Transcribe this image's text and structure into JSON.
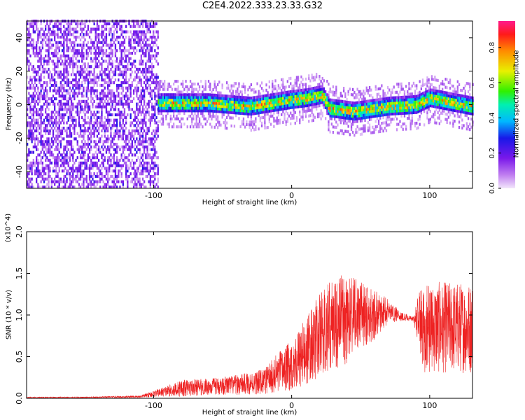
{
  "title": "C2E4.2022.333.23.33.G32",
  "chart_data": [
    {
      "type": "heatmap",
      "xlabel": "Height of straight line (km)",
      "ylabel": "Frequency (Hz)",
      "xlim": [
        -192,
        131
      ],
      "ylim": [
        -50,
        50
      ],
      "xticks": [
        -100,
        0,
        100
      ],
      "yticks": [
        -40,
        -20,
        0,
        20,
        40
      ],
      "colorbar": {
        "label": "Normalized spectral amplitude",
        "range": [
          0.0,
          0.95
        ],
        "ticks": [
          0.0,
          0.2,
          0.4,
          0.6,
          0.8
        ],
        "tick_labels": [
          "0.0",
          "0.2",
          "0.4",
          "0.6",
          "0.8"
        ]
      },
      "regions": [
        {
          "x_range": [
            -192,
            -97
          ],
          "description_values": "broadband noise, amplitude 0.05-0.35 across all frequencies"
        },
        {
          "x_range": [
            -97,
            131
          ],
          "center_frequency_hz": [
            [
              -95,
              0
            ],
            [
              -60,
              0
            ],
            [
              -30,
              -2
            ],
            [
              0,
              2
            ],
            [
              10,
              3
            ],
            [
              22,
              5
            ],
            [
              27,
              -3
            ],
            [
              45,
              -5
            ],
            [
              70,
              -2
            ],
            [
              90,
              -1
            ],
            [
              100,
              3
            ],
            [
              131,
              -2
            ]
          ],
          "band_halfwidth_hz": 5,
          "peak_amplitude": 0.9
        }
      ]
    },
    {
      "type": "line",
      "xlabel": "Height of straight line (km)",
      "ylabel": "SNR (10 * v/v)",
      "yscale_label": "(x10^4)",
      "xlim": [
        -192,
        131
      ],
      "ylim": [
        0,
        2.0
      ],
      "xticks": [
        -100,
        0,
        100
      ],
      "yticks": [
        0.0,
        0.5,
        1.0,
        1.5,
        2.0
      ],
      "ytick_labels": [
        "0.0",
        "0.5",
        "1.0",
        "1.5",
        "2.0"
      ],
      "series": [
        {
          "color": "#ee2222",
          "x": [
            -192,
            -150,
            -110,
            -95,
            -80,
            -60,
            -40,
            -20,
            -10,
            0,
            10,
            20,
            30,
            40,
            50,
            60,
            70,
            80,
            88,
            92,
            96,
            100,
            110,
            120,
            131
          ],
          "mean": [
            0.01,
            0.01,
            0.02,
            0.07,
            0.12,
            0.14,
            0.16,
            0.2,
            0.3,
            0.4,
            0.55,
            0.75,
            0.9,
            0.95,
            1.0,
            1.0,
            1.05,
            0.98,
            0.95,
            0.95,
            0.85,
            0.85,
            0.85,
            0.85,
            0.85
          ],
          "amplitude": [
            0.005,
            0.005,
            0.015,
            0.05,
            0.1,
            0.1,
            0.12,
            0.15,
            0.25,
            0.3,
            0.4,
            0.5,
            0.55,
            0.55,
            0.4,
            0.3,
            0.15,
            0.05,
            0.03,
            0.3,
            0.55,
            0.55,
            0.55,
            0.55,
            0.55
          ]
        }
      ]
    }
  ]
}
